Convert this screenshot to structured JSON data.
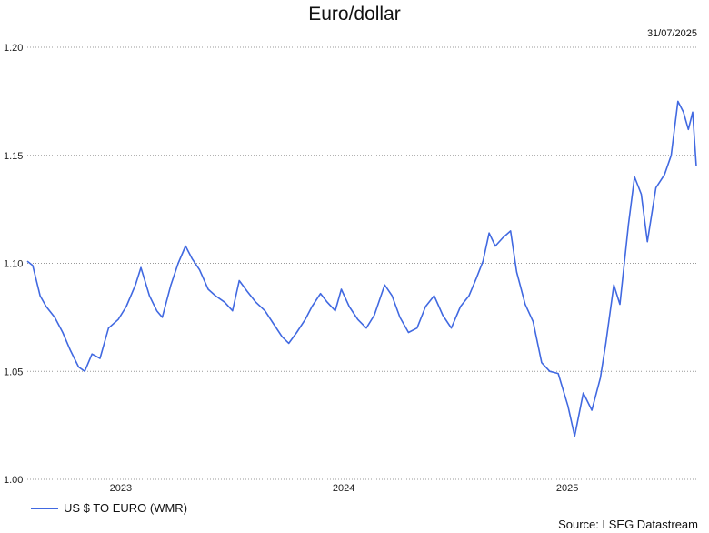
{
  "chart_data": {
    "type": "line",
    "title": "Euro/dollar",
    "date_label": "31/07/2025",
    "source": "Source: LSEG Datastream",
    "xlabel": "",
    "ylabel": "",
    "ylim": [
      1.0,
      1.2
    ],
    "yticks": [
      "1.20",
      "1.15",
      "1.10",
      "1.05",
      "1.00"
    ],
    "xticks": [
      "2023",
      "2024",
      "2025"
    ],
    "xlim": [
      "2022-08-01",
      "2025-07-31"
    ],
    "grid": true,
    "legend_position": "bottom-left",
    "series": [
      {
        "name": "US $ TO EURO (WMR)",
        "color": "#4169e1",
        "points": [
          [
            "2022-08-01",
            1.101
          ],
          [
            "2022-08-10",
            1.099
          ],
          [
            "2022-08-22",
            1.085
          ],
          [
            "2022-09-01",
            1.08
          ],
          [
            "2022-09-15",
            1.075
          ],
          [
            "2022-09-28",
            1.068
          ],
          [
            "2022-10-10",
            1.06
          ],
          [
            "2022-10-24",
            1.052
          ],
          [
            "2022-11-03",
            1.05
          ],
          [
            "2022-11-15",
            1.058
          ],
          [
            "2022-11-28",
            1.056
          ],
          [
            "2022-12-12",
            1.07
          ],
          [
            "2022-12-28",
            1.074
          ],
          [
            "2023-01-10",
            1.08
          ],
          [
            "2023-01-25",
            1.09
          ],
          [
            "2023-02-03",
            1.098
          ],
          [
            "2023-02-17",
            1.085
          ],
          [
            "2023-03-01",
            1.078
          ],
          [
            "2023-03-10",
            1.075
          ],
          [
            "2023-03-24",
            1.09
          ],
          [
            "2023-04-05",
            1.1
          ],
          [
            "2023-04-17",
            1.108
          ],
          [
            "2023-04-28",
            1.102
          ],
          [
            "2023-05-10",
            1.097
          ],
          [
            "2023-05-24",
            1.088
          ],
          [
            "2023-06-05",
            1.085
          ],
          [
            "2023-06-20",
            1.082
          ],
          [
            "2023-07-03",
            1.078
          ],
          [
            "2023-07-14",
            1.092
          ],
          [
            "2023-07-27",
            1.087
          ],
          [
            "2023-08-10",
            1.082
          ],
          [
            "2023-08-25",
            1.078
          ],
          [
            "2023-09-08",
            1.072
          ],
          [
            "2023-09-22",
            1.066
          ],
          [
            "2023-10-03",
            1.063
          ],
          [
            "2023-10-16",
            1.068
          ],
          [
            "2023-10-30",
            1.074
          ],
          [
            "2023-11-10",
            1.08
          ],
          [
            "2023-11-24",
            1.086
          ],
          [
            "2023-12-05",
            1.082
          ],
          [
            "2023-12-18",
            1.078
          ],
          [
            "2023-12-28",
            1.088
          ],
          [
            "2024-01-10",
            1.08
          ],
          [
            "2024-01-24",
            1.074
          ],
          [
            "2024-02-07",
            1.07
          ],
          [
            "2024-02-20",
            1.076
          ],
          [
            "2024-03-08",
            1.09
          ],
          [
            "2024-03-20",
            1.085
          ],
          [
            "2024-04-02",
            1.075
          ],
          [
            "2024-04-16",
            1.068
          ],
          [
            "2024-04-30",
            1.07
          ],
          [
            "2024-05-14",
            1.08
          ],
          [
            "2024-05-28",
            1.085
          ],
          [
            "2024-06-11",
            1.076
          ],
          [
            "2024-06-25",
            1.07
          ],
          [
            "2024-07-10",
            1.08
          ],
          [
            "2024-07-24",
            1.085
          ],
          [
            "2024-08-05",
            1.093
          ],
          [
            "2024-08-16",
            1.101
          ],
          [
            "2024-08-26",
            1.114
          ],
          [
            "2024-09-05",
            1.108
          ],
          [
            "2024-09-18",
            1.112
          ],
          [
            "2024-09-30",
            1.115
          ],
          [
            "2024-10-10",
            1.096
          ],
          [
            "2024-10-24",
            1.081
          ],
          [
            "2024-11-06",
            1.073
          ],
          [
            "2024-11-20",
            1.054
          ],
          [
            "2024-12-03",
            1.05
          ],
          [
            "2024-12-17",
            1.049
          ],
          [
            "2025-01-02",
            1.034
          ],
          [
            "2025-01-13",
            1.02
          ],
          [
            "2025-01-27",
            1.04
          ],
          [
            "2025-02-10",
            1.032
          ],
          [
            "2025-02-24",
            1.047
          ],
          [
            "2025-03-05",
            1.063
          ],
          [
            "2025-03-18",
            1.09
          ],
          [
            "2025-03-28",
            1.081
          ],
          [
            "2025-04-11",
            1.118
          ],
          [
            "2025-04-21",
            1.14
          ],
          [
            "2025-05-02",
            1.132
          ],
          [
            "2025-05-12",
            1.11
          ],
          [
            "2025-05-26",
            1.135
          ],
          [
            "2025-06-09",
            1.141
          ],
          [
            "2025-06-20",
            1.15
          ],
          [
            "2025-07-01",
            1.175
          ],
          [
            "2025-07-10",
            1.17
          ],
          [
            "2025-07-18",
            1.162
          ],
          [
            "2025-07-25",
            1.17
          ],
          [
            "2025-07-31",
            1.145
          ]
        ]
      }
    ]
  }
}
